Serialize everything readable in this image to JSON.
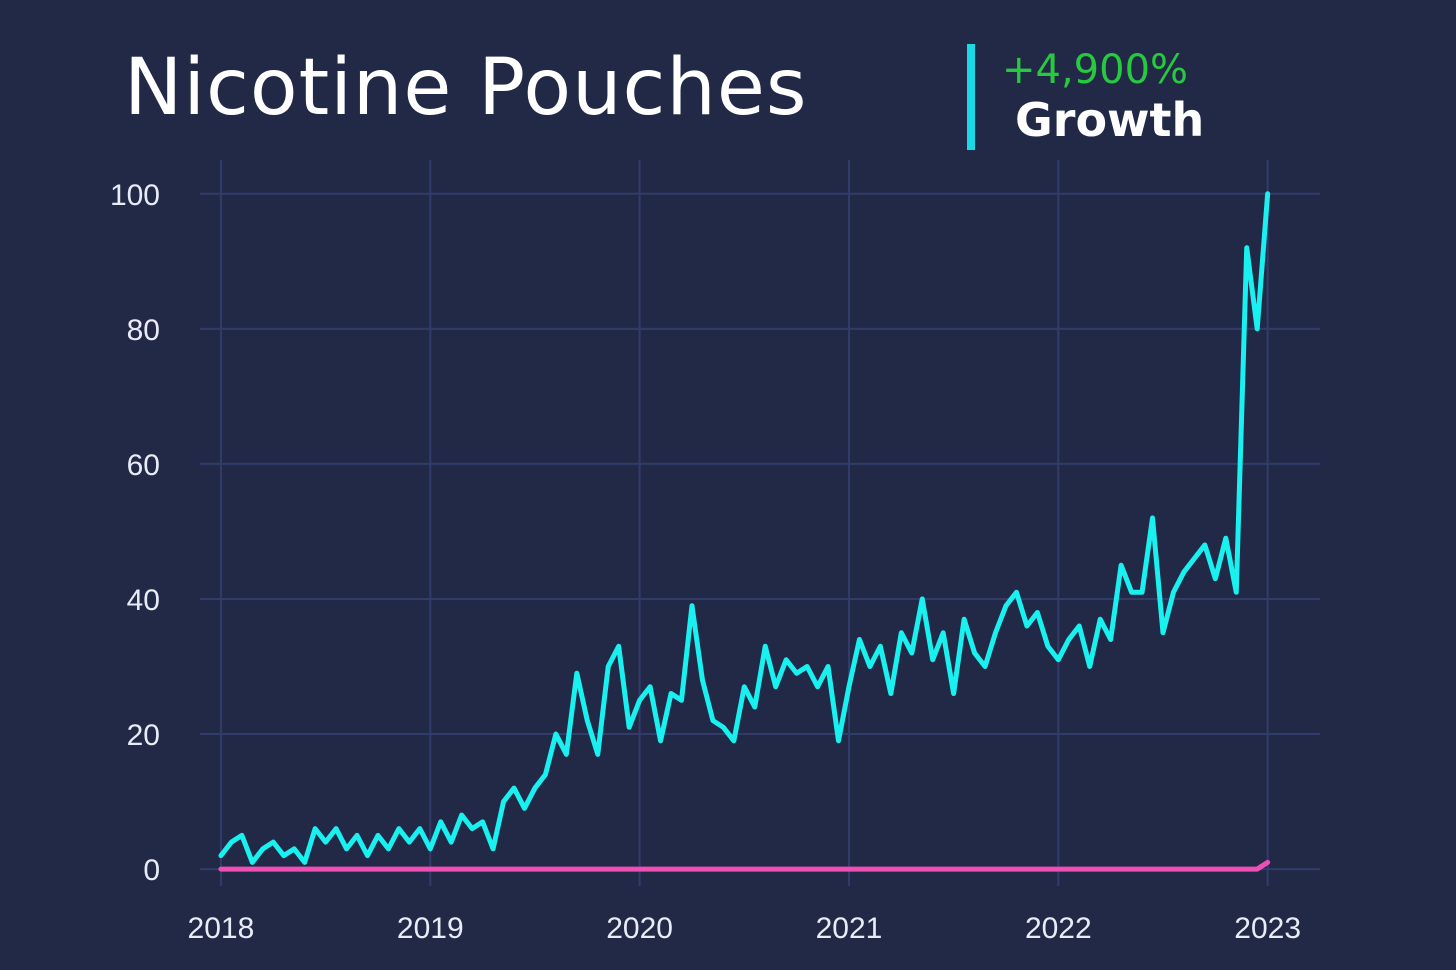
{
  "chart_data": {
    "type": "line",
    "title": "Nicotine Pouches",
    "annotation_value": "+4,900%",
    "annotation_text": "Growth",
    "accent_color": "#19d9e6",
    "annotation_color": "#27c93f",
    "grid": true,
    "xlim": [
      2017.9,
      2023.25
    ],
    "xticks": [
      2018,
      2019,
      2020,
      2021,
      2022,
      2023
    ],
    "ylim": [
      -2.5,
      105
    ],
    "yticks": [
      0,
      20,
      40,
      60,
      80,
      100
    ],
    "series": [
      {
        "color": "#19f0f0",
        "x": [
          2018.0,
          2018.05,
          2018.1,
          2018.15,
          2018.2,
          2018.25,
          2018.3,
          2018.35,
          2018.4,
          2018.45,
          2018.5,
          2018.55,
          2018.6,
          2018.65,
          2018.7,
          2018.75,
          2018.8,
          2018.85,
          2018.9,
          2018.95,
          2019.0,
          2019.05,
          2019.1,
          2019.15,
          2019.2,
          2019.25,
          2019.3,
          2019.35,
          2019.4,
          2019.45,
          2019.5,
          2019.55,
          2019.6,
          2019.65,
          2019.7,
          2019.75,
          2019.8,
          2019.85,
          2019.9,
          2019.95,
          2020.0,
          2020.05,
          2020.1,
          2020.15,
          2020.2,
          2020.25,
          2020.3,
          2020.35,
          2020.4,
          2020.45,
          2020.5,
          2020.55,
          2020.6,
          2020.65,
          2020.7,
          2020.75,
          2020.8,
          2020.85,
          2020.9,
          2020.95,
          2021.0,
          2021.05,
          2021.1,
          2021.15,
          2021.2,
          2021.25,
          2021.3,
          2021.35,
          2021.4,
          2021.45,
          2021.5,
          2021.55,
          2021.6,
          2021.65,
          2021.7,
          2021.75,
          2021.8,
          2021.85,
          2021.9,
          2021.95,
          2022.0,
          2022.05,
          2022.1,
          2022.15,
          2022.2,
          2022.25,
          2022.3,
          2022.35,
          2022.4,
          2022.45,
          2022.5,
          2022.55,
          2022.6,
          2022.65,
          2022.7,
          2022.75,
          2022.8,
          2022.85,
          2022.9,
          2022.95,
          2023.0
        ],
        "values": [
          2,
          4,
          5,
          1,
          3,
          4,
          2,
          3,
          1,
          6,
          4,
          6,
          3,
          5,
          2,
          5,
          3,
          6,
          4,
          6,
          3,
          7,
          4,
          8,
          6,
          7,
          3,
          10,
          12,
          9,
          12,
          14,
          20,
          17,
          29,
          22,
          17,
          30,
          33,
          21,
          25,
          27,
          19,
          26,
          25,
          39,
          28,
          22,
          21,
          19,
          27,
          24,
          33,
          27,
          31,
          29,
          30,
          27,
          30,
          19,
          27,
          34,
          30,
          33,
          26,
          35,
          32,
          40,
          31,
          35,
          26,
          37,
          32,
          30,
          35,
          39,
          41,
          36,
          38,
          33,
          31,
          34,
          36,
          30,
          37,
          34,
          45,
          41,
          41,
          52,
          35,
          41,
          44,
          46,
          48,
          43,
          49,
          41,
          92,
          80,
          100
        ]
      },
      {
        "color": "#ee4fb4",
        "x": [
          2018.0,
          2022.95,
          2023.0
        ],
        "values": [
          0,
          0,
          1
        ]
      }
    ]
  }
}
